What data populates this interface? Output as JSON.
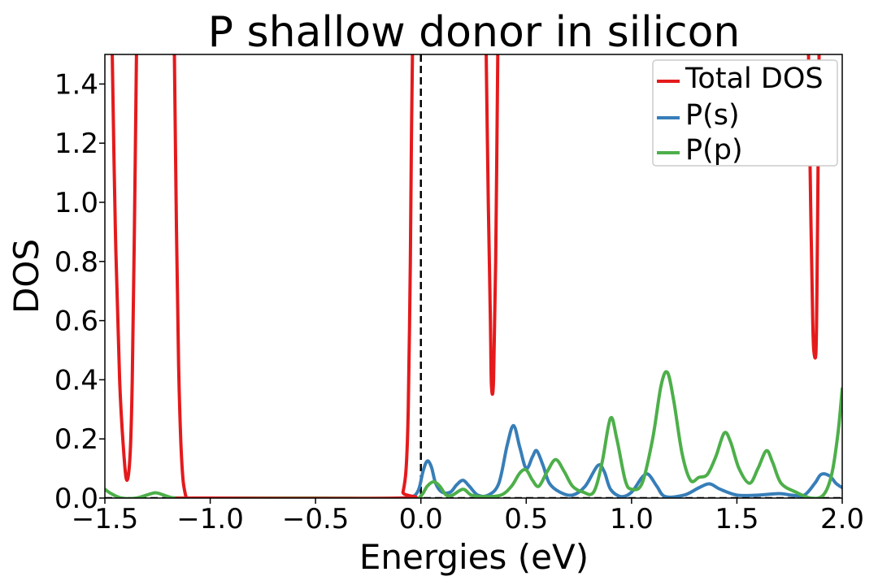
{
  "chart_data": {
    "type": "line",
    "title": "P shallow donor in silicon",
    "xlabel": "Energies (eV)",
    "ylabel": "DOS",
    "xlim": [
      -1.5,
      2.0
    ],
    "ylim": [
      0.0,
      1.5
    ],
    "xticks": [
      -1.5,
      -1.0,
      -0.5,
      0.0,
      0.5,
      1.0,
      1.5,
      2.0
    ],
    "xtick_labels": [
      "−1.5",
      "−1.0",
      "−0.5",
      "0.0",
      "0.5",
      "1.0",
      "1.5",
      "2.0"
    ],
    "yticks": [
      0.0,
      0.2,
      0.4,
      0.6,
      0.8,
      1.0,
      1.2,
      1.4
    ],
    "ytick_labels": [
      "0.0",
      "0.2",
      "0.4",
      "0.6",
      "0.8",
      "1.0",
      "1.2",
      "1.4"
    ],
    "grid": false,
    "legend_position": "top-right",
    "fermi_level": 0.0,
    "series": [
      {
        "name": "Total DOS",
        "color": "#e41a1c",
        "segments": [
          [
            [
              -1.465,
              1.5
            ],
            [
              -1.45,
              0.9
            ],
            [
              -1.43,
              0.4
            ],
            [
              -1.41,
              0.15
            ],
            [
              -1.395,
              0.06
            ],
            [
              -1.38,
              0.15
            ],
            [
              -1.37,
              0.4
            ],
            [
              -1.36,
              0.9
            ],
            [
              -1.35,
              1.5
            ]
          ],
          [
            [
              -1.17,
              1.5
            ],
            [
              -1.16,
              0.9
            ],
            [
              -1.15,
              0.45
            ],
            [
              -1.14,
              0.2
            ],
            [
              -1.13,
              0.07
            ],
            [
              -1.12,
              0.02
            ],
            [
              -1.11,
              0.0
            ],
            [
              -1.08,
              0.0
            ],
            [
              -0.1,
              0.0
            ],
            [
              -0.085,
              0.02
            ],
            [
              -0.07,
              0.1
            ],
            [
              -0.06,
              0.3
            ],
            [
              -0.05,
              0.8
            ],
            [
              -0.045,
              1.2
            ],
            [
              -0.04,
              1.5
            ]
          ],
          [
            [
              0.31,
              1.5
            ],
            [
              0.32,
              1.0
            ],
            [
              0.33,
              0.6
            ],
            [
              0.335,
              0.38
            ],
            [
              0.345,
              0.4
            ],
            [
              0.355,
              0.8
            ],
            [
              0.365,
              1.5
            ]
          ],
          [
            [
              1.84,
              1.5
            ],
            [
              1.85,
              1.0
            ],
            [
              1.86,
              0.6
            ],
            [
              1.865,
              0.5
            ],
            [
              1.875,
              0.49
            ],
            [
              1.88,
              0.7
            ],
            [
              1.885,
              1.1
            ],
            [
              1.89,
              1.5
            ]
          ]
        ]
      },
      {
        "name": "P(s)",
        "color": "#377eb8",
        "points": [
          [
            -0.1,
            0.0
          ],
          [
            -0.04,
            0.004
          ],
          [
            -0.01,
            0.03
          ],
          [
            0.01,
            0.09
          ],
          [
            0.03,
            0.125
          ],
          [
            0.05,
            0.105
          ],
          [
            0.07,
            0.05
          ],
          [
            0.1,
            0.02
          ],
          [
            0.14,
            0.02
          ],
          [
            0.17,
            0.045
          ],
          [
            0.2,
            0.06
          ],
          [
            0.23,
            0.04
          ],
          [
            0.27,
            0.01
          ],
          [
            0.32,
            0.01
          ],
          [
            0.37,
            0.05
          ],
          [
            0.41,
            0.18
          ],
          [
            0.44,
            0.245
          ],
          [
            0.47,
            0.17
          ],
          [
            0.5,
            0.1
          ],
          [
            0.53,
            0.14
          ],
          [
            0.55,
            0.16
          ],
          [
            0.58,
            0.11
          ],
          [
            0.61,
            0.05
          ],
          [
            0.66,
            0.02
          ],
          [
            0.72,
            0.01
          ],
          [
            0.78,
            0.04
          ],
          [
            0.84,
            0.11
          ],
          [
            0.87,
            0.09
          ],
          [
            0.9,
            0.03
          ],
          [
            0.95,
            0.005
          ],
          [
            1.0,
            0.02
          ],
          [
            1.05,
            0.07
          ],
          [
            1.08,
            0.08
          ],
          [
            1.12,
            0.04
          ],
          [
            1.16,
            0.005
          ],
          [
            1.25,
            0.01
          ],
          [
            1.32,
            0.035
          ],
          [
            1.37,
            0.048
          ],
          [
            1.42,
            0.03
          ],
          [
            1.5,
            0.01
          ],
          [
            1.6,
            0.01
          ],
          [
            1.7,
            0.015
          ],
          [
            1.76,
            0.01
          ],
          [
            1.82,
            0.01
          ],
          [
            1.87,
            0.05
          ],
          [
            1.9,
            0.08
          ],
          [
            1.94,
            0.075
          ],
          [
            1.97,
            0.05
          ],
          [
            2.0,
            0.035
          ]
        ]
      },
      {
        "name": "P(p)",
        "color": "#4daf4a",
        "points": [
          [
            -1.5,
            0.03
          ],
          [
            -1.47,
            0.015
          ],
          [
            -1.42,
            0.0
          ],
          [
            -1.35,
            0.0
          ],
          [
            -1.28,
            0.015
          ],
          [
            -1.25,
            0.017
          ],
          [
            -1.2,
            0.005
          ],
          [
            -1.15,
            0.0
          ],
          [
            -0.9,
            0.0
          ],
          [
            -0.5,
            0.0
          ],
          [
            -0.05,
            0.0
          ],
          [
            0.0,
            0.008
          ],
          [
            0.03,
            0.04
          ],
          [
            0.06,
            0.055
          ],
          [
            0.09,
            0.04
          ],
          [
            0.12,
            0.01
          ],
          [
            0.15,
            0.01
          ],
          [
            0.2,
            0.03
          ],
          [
            0.24,
            0.01
          ],
          [
            0.3,
            0.005
          ],
          [
            0.38,
            0.01
          ],
          [
            0.43,
            0.04
          ],
          [
            0.47,
            0.085
          ],
          [
            0.5,
            0.095
          ],
          [
            0.53,
            0.06
          ],
          [
            0.56,
            0.04
          ],
          [
            0.6,
            0.09
          ],
          [
            0.64,
            0.13
          ],
          [
            0.68,
            0.09
          ],
          [
            0.72,
            0.04
          ],
          [
            0.77,
            0.02
          ],
          [
            0.82,
            0.02
          ],
          [
            0.86,
            0.12
          ],
          [
            0.9,
            0.27
          ],
          [
            0.93,
            0.2
          ],
          [
            0.97,
            0.06
          ],
          [
            1.0,
            0.03
          ],
          [
            1.05,
            0.05
          ],
          [
            1.1,
            0.2
          ],
          [
            1.14,
            0.38
          ],
          [
            1.17,
            0.425
          ],
          [
            1.2,
            0.33
          ],
          [
            1.24,
            0.15
          ],
          [
            1.28,
            0.06
          ],
          [
            1.32,
            0.07
          ],
          [
            1.36,
            0.08
          ],
          [
            1.4,
            0.14
          ],
          [
            1.44,
            0.22
          ],
          [
            1.47,
            0.19
          ],
          [
            1.51,
            0.1
          ],
          [
            1.56,
            0.05
          ],
          [
            1.6,
            0.1
          ],
          [
            1.64,
            0.16
          ],
          [
            1.67,
            0.12
          ],
          [
            1.71,
            0.05
          ],
          [
            1.78,
            0.02
          ],
          [
            1.85,
            0.0
          ],
          [
            1.91,
            0.01
          ],
          [
            1.95,
            0.08
          ],
          [
            1.98,
            0.22
          ],
          [
            2.0,
            0.37
          ]
        ]
      }
    ]
  }
}
